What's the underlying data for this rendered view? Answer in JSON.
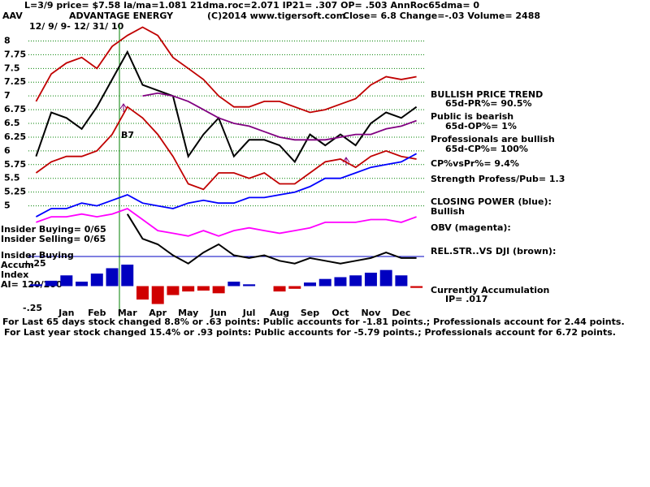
{
  "header": {
    "status": "L=3/9  price= $7.58  la/ma=1.081 21dma.roc=2.071 IP21= .307 OP= .503 AnnRoc65dma= 0",
    "symbol": "AAV",
    "company": "ADVANTAGE ENERGY",
    "copyright": "(C)2014 www.tigersoft.com",
    "quote": "Close=  6.8  Change=-.03 Volume= 2488",
    "period": "12/ 9/ 9- 12/ 31/ 10"
  },
  "annotations": [
    "BULLISH PRICE TREND",
    "65d-PR%= 90.5%",
    "Public is bearish",
    "65d-OP%= 1%",
    "Professionals are bullish",
    "65d-CP%= 100%",
    "CP%vsPr%=  9.4%",
    "Strength Profess/Pub= 1.3",
    "CLOSING POWER (blue):",
    "Bullish",
    "OBV (magenta):",
    "REL.STR..VS DJI (brown):",
    "Currently Accumulation",
    "IP=  .017",
    "Insider Buying= 0/65",
    "Insider Selling= 0/65",
    "Insider Buying",
    "Accum",
    "Index",
    "AI= 120/200",
    "B7"
  ],
  "footer": [
    "For Last 65 days stock changed  8.8% or  .63 points:  Public accounts for -1.81 points.;  Professionals account for  2.44 points.",
    "For Last year stock changed  15.4% or  .93 points:  Public accounts for -5.79 points.;  Professionals account for  6.72 points."
  ],
  "chart_data": [
    {
      "type": "line",
      "grid": true,
      "categories": [
        null,
        null,
        "Jan",
        null,
        "Feb",
        null,
        "Mar",
        null,
        "Apr",
        null,
        "May",
        null,
        "Jun",
        null,
        "Jul",
        null,
        "Aug",
        null,
        "Sep",
        null,
        "Oct",
        null,
        "Nov",
        null,
        "Dec",
        null
      ],
      "ylim": [
        3,
        8.45
      ],
      "yticks": [
        5,
        5.25,
        5.5,
        5.75,
        6,
        6.25,
        6.5,
        6.75,
        7,
        7.25,
        7.5,
        7.75,
        8
      ],
      "series": [
        {
          "name": "Upper band",
          "color": "#c00000",
          "values": [
            6.9,
            7.4,
            7.6,
            7.7,
            7.5,
            7.9,
            8.1,
            8.25,
            8.1,
            7.7,
            7.5,
            7.3,
            7.0,
            6.8,
            6.8,
            6.9,
            6.9,
            6.8,
            6.7,
            6.75,
            6.85,
            6.95,
            7.2,
            7.35,
            7.3,
            7.35
          ]
        },
        {
          "name": "Lower band",
          "color": "#c00000",
          "values": [
            5.6,
            5.8,
            5.9,
            5.9,
            6.0,
            6.3,
            6.8,
            6.6,
            6.3,
            5.9,
            5.4,
            5.3,
            5.6,
            5.6,
            5.5,
            5.6,
            5.4,
            5.4,
            5.6,
            5.8,
            5.85,
            5.7,
            5.9,
            6.0,
            5.9,
            5.85
          ]
        },
        {
          "name": "Price",
          "color": "#000000",
          "values": [
            5.9,
            6.7,
            6.6,
            6.4,
            6.8,
            7.3,
            7.8,
            7.2,
            7.1,
            7.0,
            5.9,
            6.3,
            6.6,
            5.9,
            6.2,
            6.2,
            6.1,
            5.8,
            6.3,
            6.1,
            6.3,
            6.1,
            6.5,
            6.7,
            6.6,
            6.8
          ]
        },
        {
          "name": "21-dma",
          "color": "#800080",
          "values": [
            null,
            null,
            null,
            null,
            null,
            null,
            null,
            7.0,
            7.05,
            7.0,
            6.9,
            6.75,
            6.6,
            6.5,
            6.45,
            6.35,
            6.25,
            6.2,
            6.2,
            6.2,
            6.25,
            6.3,
            6.3,
            6.4,
            6.45,
            6.55
          ]
        },
        {
          "name": "Closing Power",
          "color": "#0000ff",
          "values": [
            4.8,
            4.95,
            4.95,
            5.05,
            5.0,
            5.1,
            5.2,
            5.05,
            5.0,
            4.95,
            5.05,
            5.1,
            5.05,
            5.05,
            5.15,
            5.15,
            5.2,
            5.25,
            5.35,
            5.5,
            5.5,
            5.6,
            5.7,
            5.75,
            5.8,
            5.95
          ]
        },
        {
          "name": "OBV",
          "color": "#ff00ff",
          "values": [
            4.7,
            4.8,
            4.8,
            4.85,
            4.8,
            4.85,
            4.95,
            4.75,
            4.55,
            4.5,
            4.45,
            4.55,
            4.45,
            4.55,
            4.6,
            4.55,
            4.5,
            4.55,
            4.6,
            4.7,
            4.7,
            4.7,
            4.75,
            4.75,
            4.7,
            4.8
          ]
        },
        {
          "name": "Rel Str",
          "color": "#000000",
          "values": [
            null,
            null,
            null,
            null,
            null,
            null,
            4.85,
            4.4,
            4.3,
            4.1,
            3.95,
            4.15,
            4.3,
            4.1,
            4.05,
            4.1,
            4.0,
            3.95,
            4.05,
            4.0,
            3.95,
            4.0,
            4.05,
            4.15,
            4.05,
            4.05
          ]
        }
      ]
    },
    {
      "type": "bar",
      "pos_color": "#0000c0",
      "neg_color": "#d00000",
      "ylim": [
        -0.34,
        0.34
      ],
      "yticks": [
        {
          "value": 0.25,
          "label": "+.25"
        },
        {
          "value": -0.25,
          "label": "-.25"
        }
      ],
      "values": [
        0.02,
        0.06,
        0.12,
        0.05,
        0.14,
        0.2,
        0.24,
        -0.15,
        -0.2,
        -0.1,
        -0.06,
        -0.05,
        -0.08,
        0.05,
        0.02,
        0.0,
        -0.06,
        -0.03,
        0.04,
        0.08,
        0.1,
        0.12,
        0.15,
        0.18,
        0.12,
        -0.02
      ]
    }
  ]
}
